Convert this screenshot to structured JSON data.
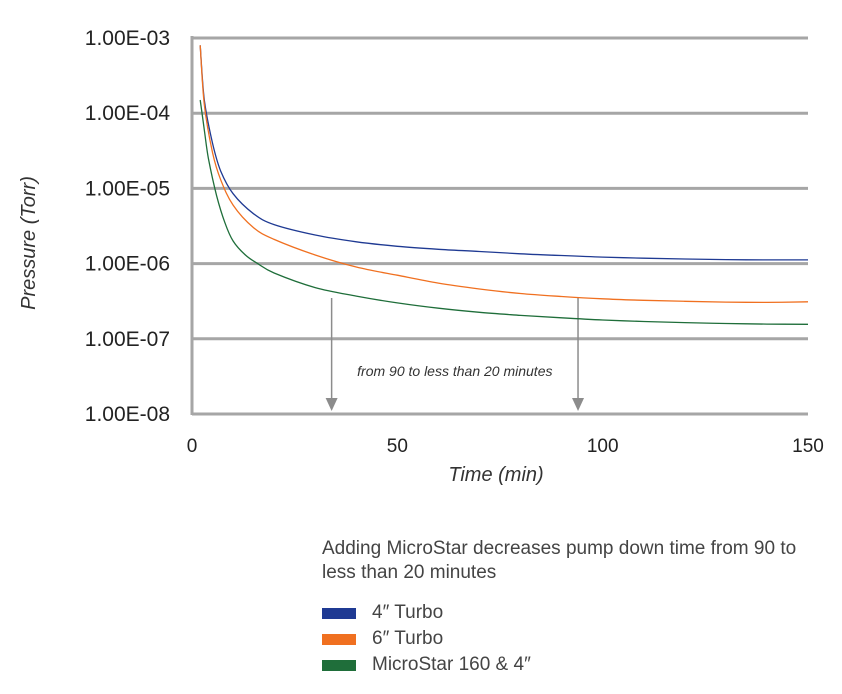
{
  "chart_data": {
    "type": "line",
    "xlabel": "Time (min)",
    "ylabel": "Pressure (Torr)",
    "xlim": [
      0,
      150
    ],
    "ylim": [
      1e-08,
      0.001
    ],
    "y_scale": "log",
    "x_ticks": [
      "0",
      "50",
      "100",
      "150"
    ],
    "y_ticks": [
      "1.00E-08",
      "1.00E-07",
      "1.00E-06",
      "1.00E-05",
      "1.00E-04",
      "1.00E-03"
    ],
    "grid": "horizontal",
    "series": [
      {
        "name": "4″ Turbo",
        "color": "#1f3a93",
        "points": [
          [
            2,
            0.0008
          ],
          [
            3,
            0.00015
          ],
          [
            5,
            4e-05
          ],
          [
            7,
            1.7e-05
          ],
          [
            10,
            8.5e-06
          ],
          [
            15,
            4.6e-06
          ],
          [
            20,
            3.3e-06
          ],
          [
            30,
            2.4e-06
          ],
          [
            40,
            1.95e-06
          ],
          [
            50,
            1.7e-06
          ],
          [
            60,
            1.55e-06
          ],
          [
            70,
            1.45e-06
          ],
          [
            80,
            1.35e-06
          ],
          [
            90,
            1.28e-06
          ],
          [
            100,
            1.22e-06
          ],
          [
            110,
            1.18e-06
          ],
          [
            120,
            1.15e-06
          ],
          [
            130,
            1.13e-06
          ],
          [
            140,
            1.12e-06
          ],
          [
            150,
            1.12e-06
          ]
        ]
      },
      {
        "name": "6″ Turbo",
        "color": "#f07020",
        "points": [
          [
            2,
            0.0008
          ],
          [
            3,
            0.00013
          ],
          [
            5,
            3e-05
          ],
          [
            7,
            1.3e-05
          ],
          [
            10,
            6e-06
          ],
          [
            15,
            3e-06
          ],
          [
            20,
            2.1e-06
          ],
          [
            30,
            1.3e-06
          ],
          [
            40,
            9e-07
          ],
          [
            50,
            7e-07
          ],
          [
            60,
            5.5e-07
          ],
          [
            70,
            4.6e-07
          ],
          [
            80,
            4e-07
          ],
          [
            90,
            3.65e-07
          ],
          [
            100,
            3.4e-07
          ],
          [
            110,
            3.25e-07
          ],
          [
            120,
            3.15e-07
          ],
          [
            130,
            3.08e-07
          ],
          [
            140,
            3.05e-07
          ],
          [
            150,
            3.1e-07
          ]
        ]
      },
      {
        "name": "MicroStar 160 & 4″",
        "color": "#1f6e3a",
        "points": [
          [
            2,
            0.00015
          ],
          [
            3,
            6e-05
          ],
          [
            4,
            2.5e-05
          ],
          [
            6,
            8e-06
          ],
          [
            8,
            3.5e-06
          ],
          [
            10,
            2e-06
          ],
          [
            13,
            1.3e-06
          ],
          [
            16,
            1e-06
          ],
          [
            20,
            7.5e-07
          ],
          [
            30,
            4.8e-07
          ],
          [
            40,
            3.7e-07
          ],
          [
            50,
            3e-07
          ],
          [
            60,
            2.55e-07
          ],
          [
            70,
            2.25e-07
          ],
          [
            80,
            2.05e-07
          ],
          [
            90,
            1.9e-07
          ],
          [
            100,
            1.78e-07
          ],
          [
            110,
            1.7e-07
          ],
          [
            120,
            1.64e-07
          ],
          [
            130,
            1.6e-07
          ],
          [
            140,
            1.57e-07
          ],
          [
            150,
            1.56e-07
          ]
        ]
      }
    ],
    "annotations": [
      {
        "text": "from 90 to less than 20 minutes",
        "arrows_x": [
          34,
          94
        ]
      }
    ],
    "caption": "Adding MicroStar decreases pump down time from 90 to less than 20 minutes",
    "legend_placement": "bottom-right"
  }
}
